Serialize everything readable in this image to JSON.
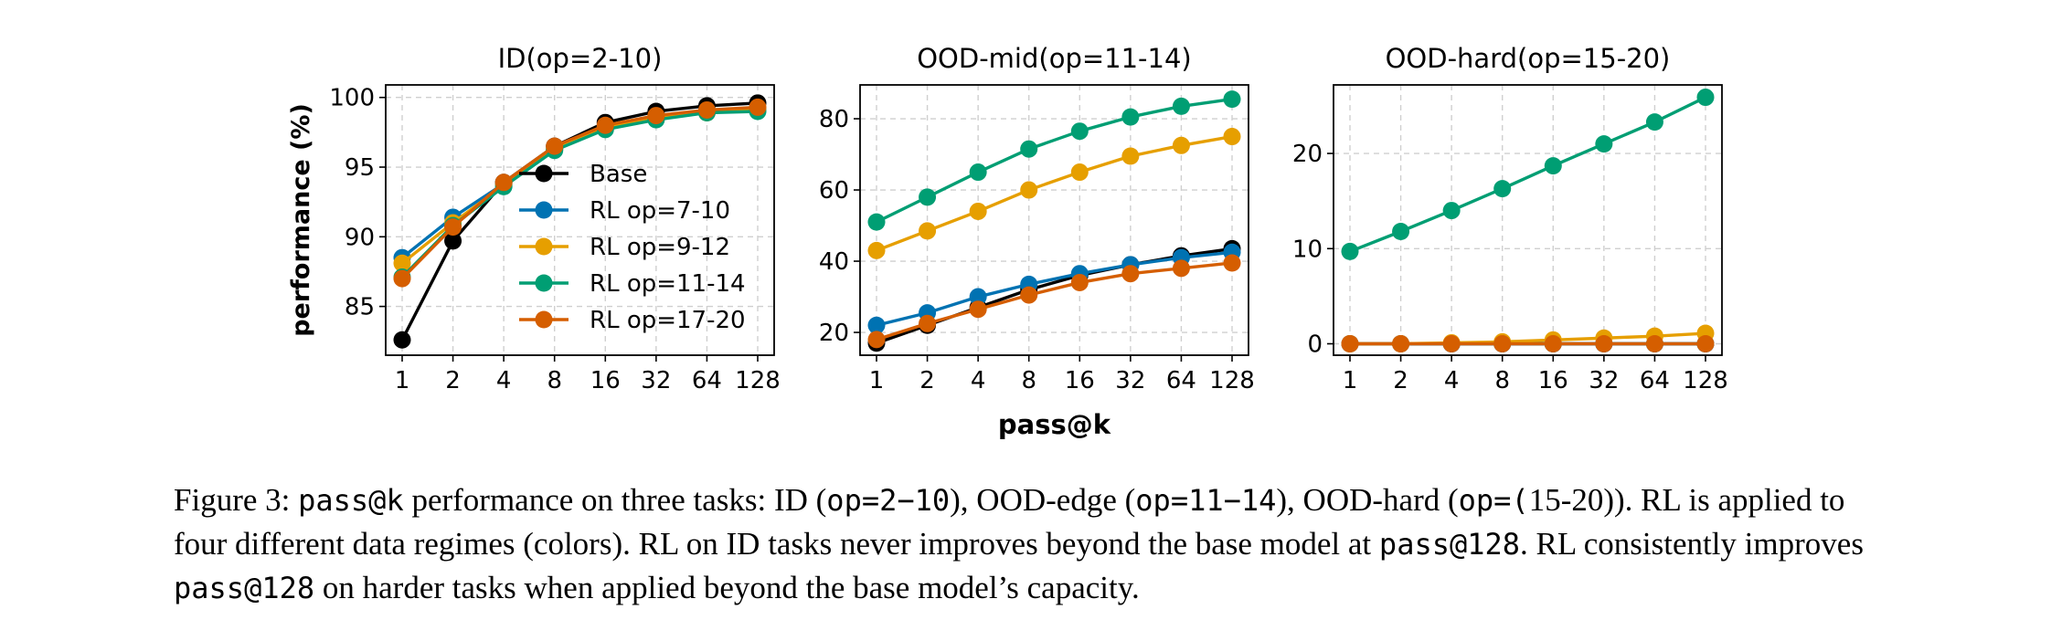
{
  "chart_data": [
    {
      "type": "line",
      "title": "ID(op=2-10)",
      "xlabel": "",
      "ylabel": "performance (%)",
      "categories": [
        "1",
        "2",
        "4",
        "8",
        "16",
        "32",
        "64",
        "128"
      ],
      "ylim": [
        81.5,
        100.9
      ],
      "yticks": [
        85,
        90,
        95,
        100
      ],
      "ytick_labels": [
        "85",
        "90",
        "95",
        "100"
      ],
      "grid": true,
      "legend": "center-right",
      "series": [
        {
          "name": "Base",
          "color": "#000000",
          "values": [
            82.6,
            89.7,
            93.9,
            96.5,
            98.2,
            99.0,
            99.4,
            99.6
          ]
        },
        {
          "name": "RL op=7-10",
          "color": "#0072B2",
          "values": [
            88.5,
            91.4,
            93.8,
            96.3,
            97.9,
            98.6,
            99.0,
            99.2
          ]
        },
        {
          "name": "RL op=9-12",
          "color": "#E69F00",
          "values": [
            88.1,
            91.0,
            93.7,
            96.3,
            97.8,
            98.5,
            98.9,
            99.1
          ]
        },
        {
          "name": "RL op=11-14",
          "color": "#009E73",
          "values": [
            87.1,
            90.8,
            93.6,
            96.2,
            97.7,
            98.4,
            98.9,
            99.0
          ]
        },
        {
          "name": "RL op=17-20",
          "color": "#D55E00",
          "values": [
            87.0,
            90.7,
            93.9,
            96.5,
            98.0,
            98.7,
            99.1,
            99.3
          ]
        }
      ]
    },
    {
      "type": "line",
      "title": "OOD-mid(op=11-14)",
      "xlabel": "pass@k",
      "ylabel": "",
      "categories": [
        "1",
        "2",
        "4",
        "8",
        "16",
        "32",
        "64",
        "128"
      ],
      "ylim": [
        13.6,
        89.5
      ],
      "yticks": [
        20,
        40,
        60,
        80
      ],
      "ytick_labels": [
        "20",
        "40",
        "60",
        "80"
      ],
      "grid": true,
      "series": [
        {
          "name": "Base",
          "color": "#000000",
          "values": [
            17,
            22,
            27,
            32,
            36,
            39,
            41.5,
            43.5
          ]
        },
        {
          "name": "RL op=7-10",
          "color": "#0072B2",
          "values": [
            22,
            25.5,
            30,
            33.5,
            36.5,
            39,
            41,
            42.5
          ]
        },
        {
          "name": "RL op=9-12",
          "color": "#E69F00",
          "values": [
            43,
            48.5,
            54,
            60,
            65,
            69.5,
            72.5,
            75
          ]
        },
        {
          "name": "RL op=11-14",
          "color": "#009E73",
          "values": [
            51,
            58,
            65,
            71.5,
            76.5,
            80.5,
            83.5,
            85.5
          ]
        },
        {
          "name": "RL op=17-20",
          "color": "#D55E00",
          "values": [
            18,
            22.5,
            26.5,
            30.5,
            34,
            36.5,
            38,
            39.5
          ]
        }
      ]
    },
    {
      "type": "line",
      "title": "OOD-hard(op=15-20)",
      "xlabel": "",
      "ylabel": "",
      "categories": [
        "1",
        "2",
        "4",
        "8",
        "16",
        "32",
        "64",
        "128"
      ],
      "ylim": [
        -1.2,
        27.2
      ],
      "yticks": [
        0,
        10,
        20
      ],
      "ytick_labels": [
        "0",
        "10",
        "20"
      ],
      "grid": true,
      "series": [
        {
          "name": "Base",
          "color": "#000000",
          "values": [
            0,
            0,
            0,
            0,
            0,
            0,
            0,
            0
          ]
        },
        {
          "name": "RL op=7-10",
          "color": "#0072B2",
          "values": [
            0,
            0,
            0,
            0,
            0,
            0,
            0,
            0
          ]
        },
        {
          "name": "RL op=9-12",
          "color": "#E69F00",
          "values": [
            0,
            0,
            0.1,
            0.2,
            0.4,
            0.6,
            0.8,
            1.1
          ]
        },
        {
          "name": "RL op=11-14",
          "color": "#009E73",
          "values": [
            9.7,
            11.8,
            14,
            16.3,
            18.7,
            21,
            23.3,
            25.9
          ]
        },
        {
          "name": "RL op=17-20",
          "color": "#D55E00",
          "values": [
            0,
            0,
            0,
            0,
            0,
            0,
            0,
            0
          ]
        }
      ]
    }
  ],
  "caption": {
    "figure_label": "Figure 3: ",
    "seg1_mono": "pass@k",
    "seg2": " performance on three tasks: ID (",
    "seg3_mono": "op=2−10",
    "seg4": "), OOD-edge (",
    "seg5_mono": "op=11−14",
    "seg6": "), OOD-hard (",
    "seg7_mono": "op=(",
    "seg8": "15-20)). RL is applied to four different data regimes (colors). RL on ID tasks never improves beyond the base model at ",
    "seg9_mono": "pass@128",
    "seg10": ". RL consistently improves ",
    "seg11_mono": "pass@128",
    "seg12": " on harder tasks when applied beyond the base model’s capacity."
  }
}
